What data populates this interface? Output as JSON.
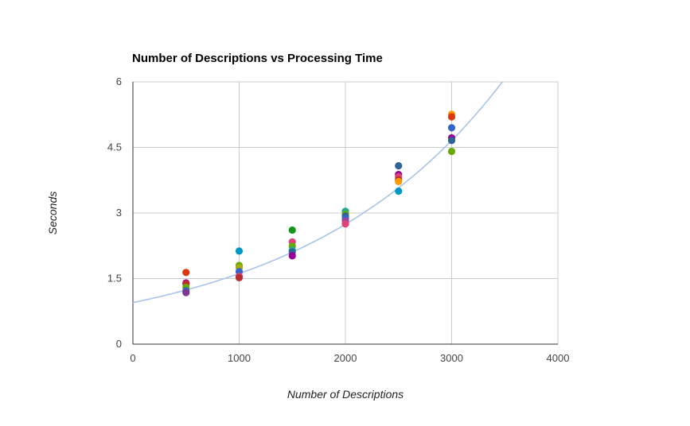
{
  "chart_data": {
    "type": "scatter",
    "title": "Number of Descriptions vs Processing Time",
    "xlabel": "Number of Descriptions",
    "ylabel": "Seconds",
    "xlim": [
      0,
      4000
    ],
    "ylim": [
      0,
      6
    ],
    "x_ticks": [
      "0",
      "1000",
      "2000",
      "3000",
      "4000"
    ],
    "y_ticks": [
      "0",
      "1.5",
      "3",
      "4.5",
      "6"
    ],
    "grid": true,
    "legend": "none",
    "trendline": {
      "type": "exponential",
      "a": 0.95,
      "b": 0.00053,
      "color": "#a8c4e8"
    },
    "points": [
      {
        "x": 500,
        "y": 1.64,
        "color": "#dc3912"
      },
      {
        "x": 500,
        "y": 1.4,
        "color": "#990099"
      },
      {
        "x": 500,
        "y": 1.38,
        "color": "#b82e2e"
      },
      {
        "x": 500,
        "y": 1.3,
        "color": "#66aa00"
      },
      {
        "x": 500,
        "y": 1.22,
        "color": "#3366cc"
      },
      {
        "x": 500,
        "y": 1.18,
        "color": "#7e3794"
      },
      {
        "x": 1000,
        "y": 2.13,
        "color": "#0099c6"
      },
      {
        "x": 1000,
        "y": 1.8,
        "color": "#66aa00"
      },
      {
        "x": 1000,
        "y": 1.75,
        "color": "#aaaa11"
      },
      {
        "x": 1000,
        "y": 1.66,
        "color": "#3366cc"
      },
      {
        "x": 1000,
        "y": 1.55,
        "color": "#dd4477"
      },
      {
        "x": 1000,
        "y": 1.52,
        "color": "#b82e2e"
      },
      {
        "x": 1500,
        "y": 2.61,
        "color": "#109618"
      },
      {
        "x": 1500,
        "y": 2.34,
        "color": "#dd4477"
      },
      {
        "x": 1500,
        "y": 2.24,
        "color": "#66aa00"
      },
      {
        "x": 1500,
        "y": 2.15,
        "color": "#22aa99"
      },
      {
        "x": 1500,
        "y": 2.11,
        "color": "#316395"
      },
      {
        "x": 1500,
        "y": 2.02,
        "color": "#990099"
      },
      {
        "x": 2000,
        "y": 3.04,
        "color": "#22aa99"
      },
      {
        "x": 2000,
        "y": 2.97,
        "color": "#66aa00"
      },
      {
        "x": 2000,
        "y": 2.93,
        "color": "#316395"
      },
      {
        "x": 2000,
        "y": 2.87,
        "color": "#3366cc"
      },
      {
        "x": 2000,
        "y": 2.82,
        "color": "#994499"
      },
      {
        "x": 2000,
        "y": 2.75,
        "color": "#dd4477"
      },
      {
        "x": 2500,
        "y": 4.08,
        "color": "#316395"
      },
      {
        "x": 2500,
        "y": 3.88,
        "color": "#990099"
      },
      {
        "x": 2500,
        "y": 3.83,
        "color": "#dd4477"
      },
      {
        "x": 2500,
        "y": 3.76,
        "color": "#b82e2e"
      },
      {
        "x": 2500,
        "y": 3.72,
        "color": "#ff9900"
      },
      {
        "x": 2500,
        "y": 3.5,
        "color": "#0099c6"
      },
      {
        "x": 3000,
        "y": 5.26,
        "color": "#ff9900"
      },
      {
        "x": 3000,
        "y": 5.2,
        "color": "#dc3912"
      },
      {
        "x": 3000,
        "y": 4.95,
        "color": "#3366cc"
      },
      {
        "x": 3000,
        "y": 4.72,
        "color": "#990099"
      },
      {
        "x": 3000,
        "y": 4.66,
        "color": "#316395"
      },
      {
        "x": 3000,
        "y": 4.41,
        "color": "#66aa00"
      }
    ]
  }
}
